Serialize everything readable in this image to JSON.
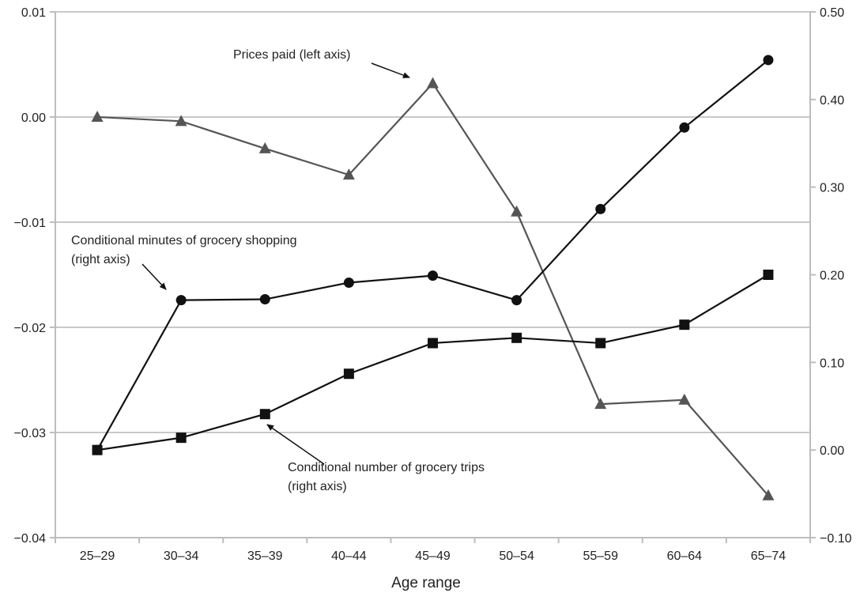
{
  "chart_data": {
    "type": "line",
    "xlabel": "Age range",
    "categories": [
      "25–29",
      "30–34",
      "35–39",
      "40–44",
      "45–49",
      "50–54",
      "55–59",
      "60–64",
      "65–74"
    ],
    "left_axis": {
      "ylim": [
        -0.04,
        0.01
      ],
      "ticks": [
        0.01,
        0.0,
        -0.01,
        -0.02,
        -0.03,
        -0.04
      ],
      "tick_labels": [
        "0.01",
        "0.00",
        "−0.01",
        "−0.02",
        "−0.03",
        "−0.04"
      ]
    },
    "right_axis": {
      "ylim": [
        -0.1,
        0.5
      ],
      "ticks": [
        0.5,
        0.4,
        0.3,
        0.2,
        0.1,
        0.0,
        -0.1
      ],
      "tick_labels": [
        "0.50",
        "0.40",
        "0.30",
        "0.20",
        "0.10",
        "0.00",
        "−0.10"
      ]
    },
    "grid": "horizontal",
    "series": [
      {
        "label_lines": [
          "Prices paid (left axis)"
        ],
        "axis": "left",
        "marker": "triangle",
        "color": "#555555",
        "values": [
          0.0,
          -0.0004,
          -0.003,
          -0.0055,
          0.0032,
          -0.009,
          -0.0273,
          -0.0269,
          -0.036
        ]
      },
      {
        "label_lines": [
          "Conditional minutes of grocery shopping",
          "(right axis)"
        ],
        "axis": "right",
        "marker": "circle",
        "color": "#111111",
        "values": [
          0.0,
          0.171,
          0.172,
          0.191,
          0.199,
          0.171,
          0.275,
          0.368,
          0.445
        ]
      },
      {
        "label_lines": [
          "Conditional number of grocery trips",
          " (right axis)"
        ],
        "axis": "right",
        "marker": "square",
        "color": "#111111",
        "values": [
          0.0,
          0.014,
          0.041,
          0.087,
          0.122,
          0.128,
          0.122,
          0.143,
          0.2
        ]
      }
    ]
  }
}
